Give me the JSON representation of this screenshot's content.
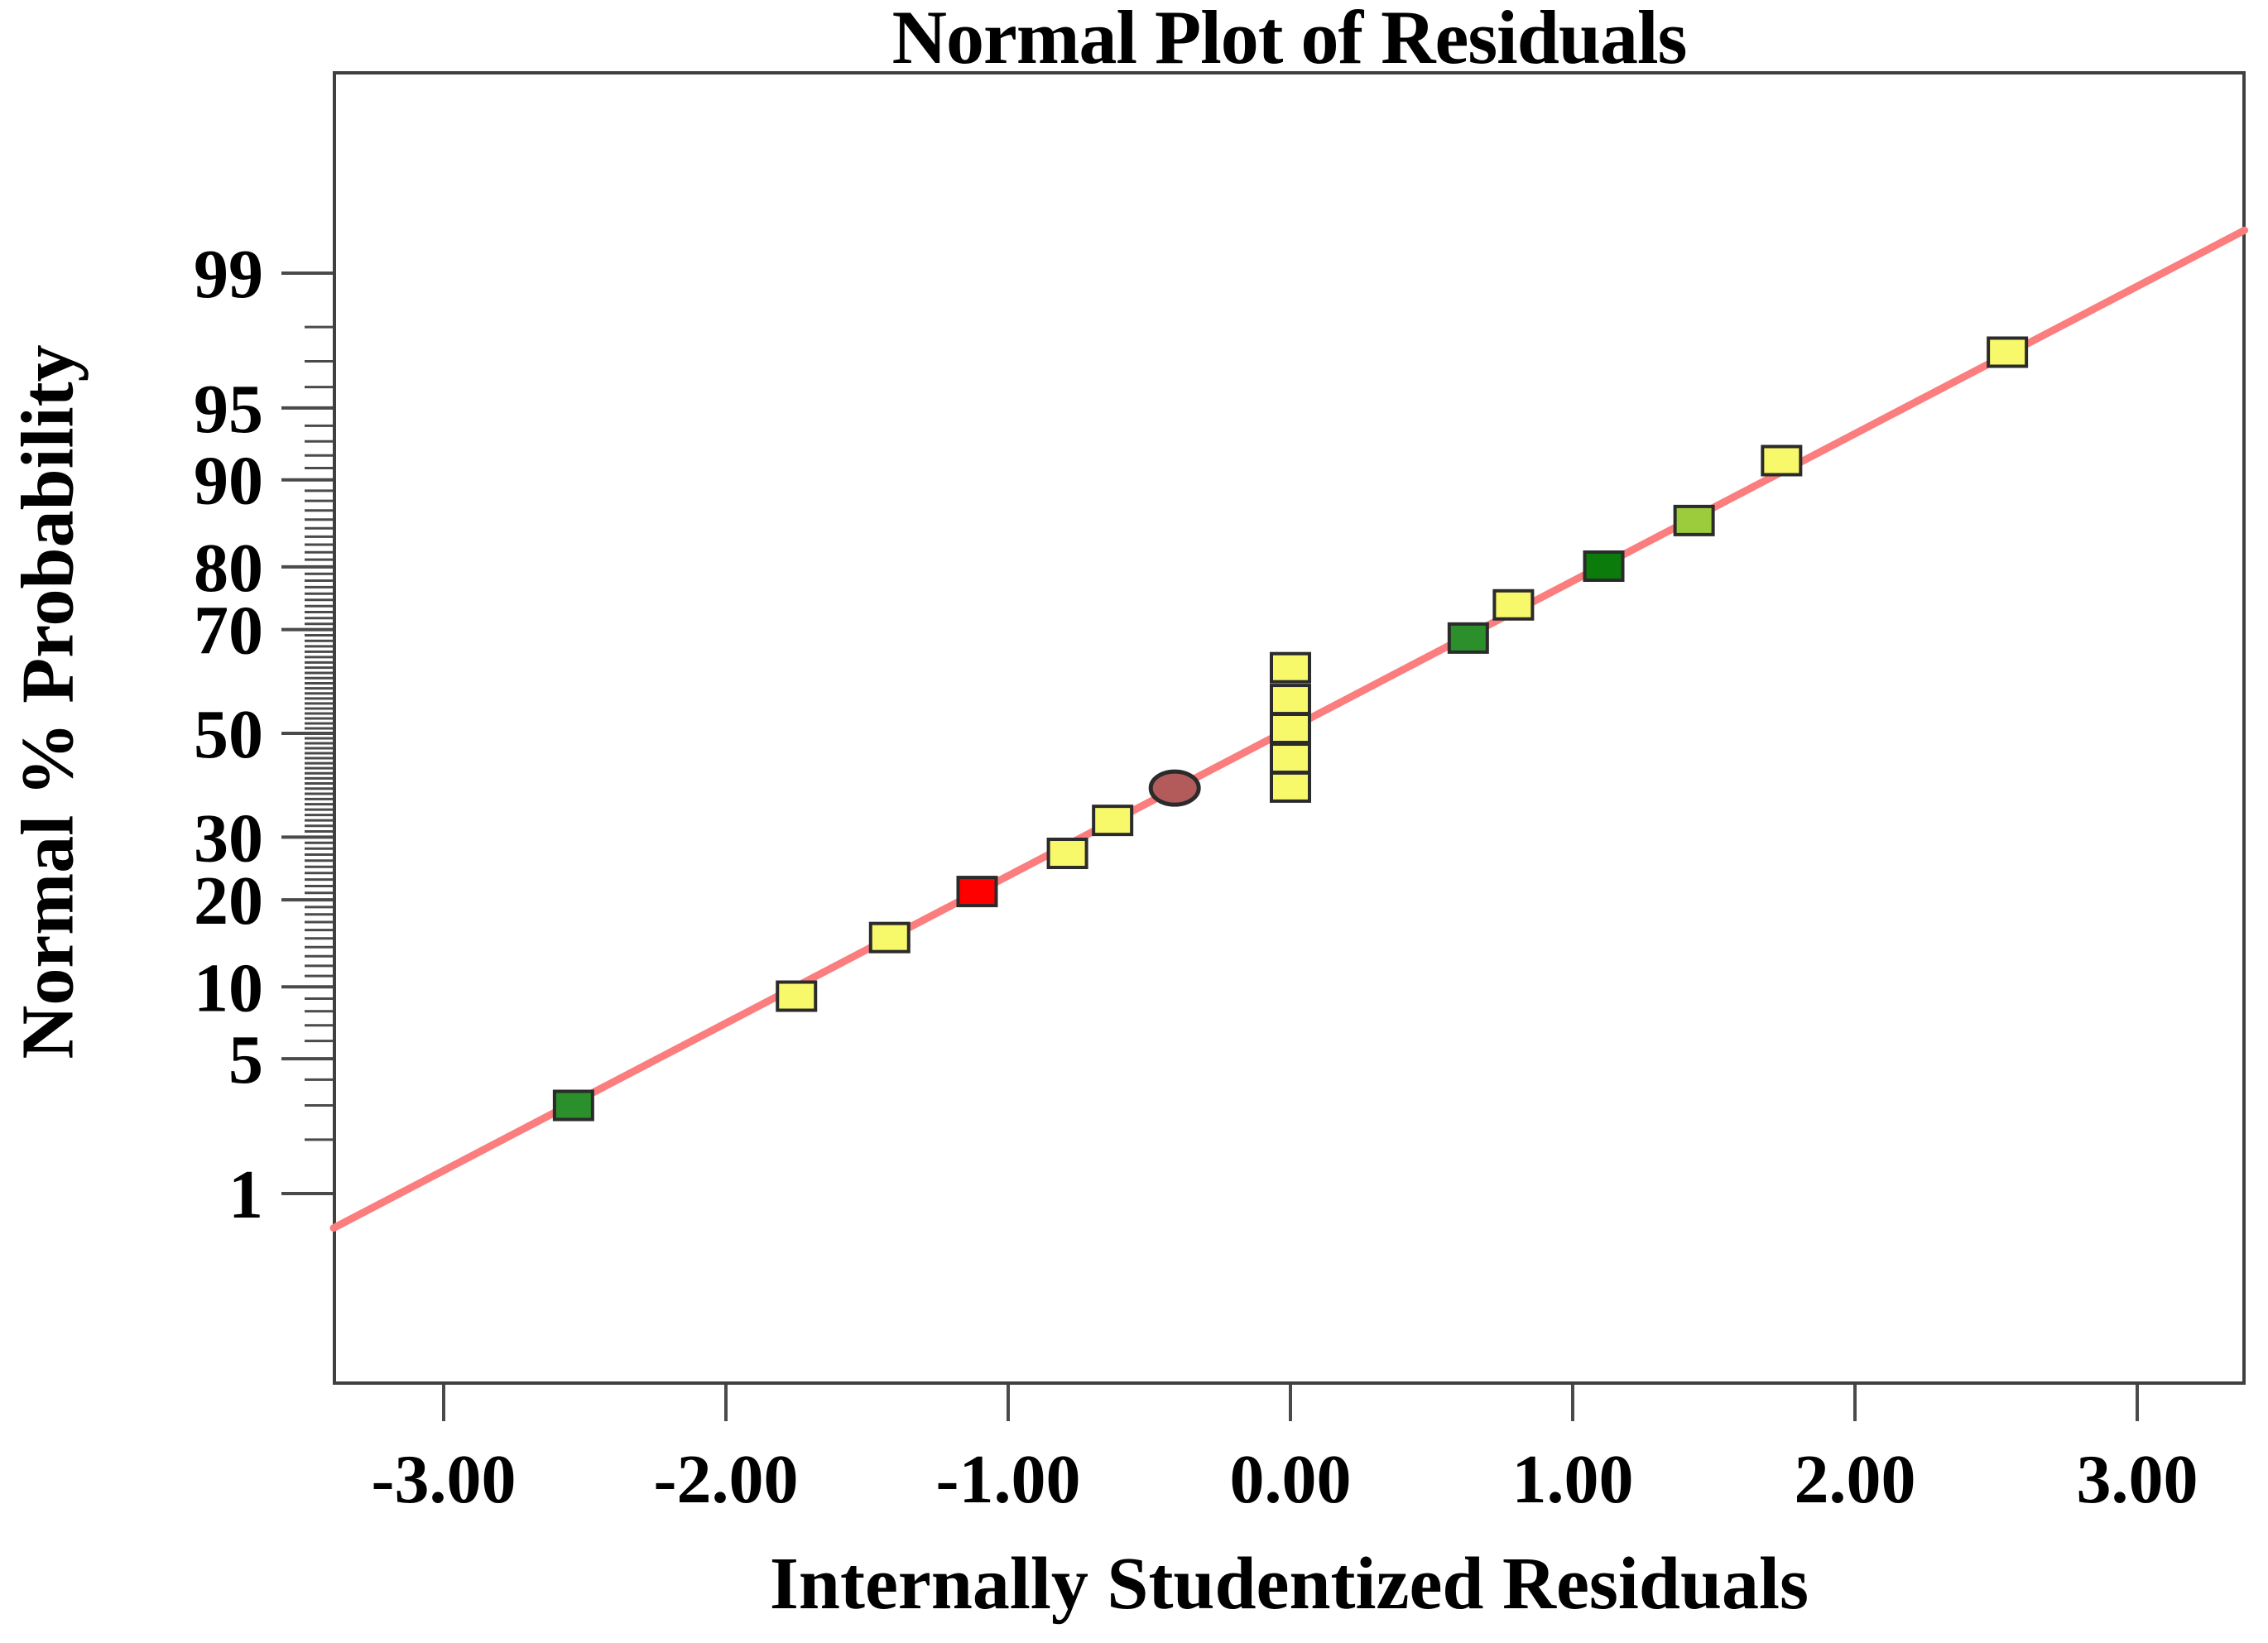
{
  "title": "Normal Plot of Residuals",
  "chart_data": {
    "type": "scatter",
    "subtype": "normal-probability-plot",
    "title": "Normal Plot of Residuals",
    "xlabel": "Internally Studentized Residuals",
    "ylabel": "Normal % Probability",
    "x_axis": {
      "range": [
        -3.39,
        3.38
      ],
      "ticks": [
        -3,
        -2,
        -1,
        0,
        1,
        2,
        3
      ],
      "tick_labels": [
        "-3.00",
        "-2.00",
        "-1.00",
        "0.00",
        "1.00",
        "2.00",
        "3.00"
      ]
    },
    "y_axis": {
      "scale": "probit",
      "unit": "%",
      "major_ticks": [
        99,
        95,
        90,
        80,
        70,
        50,
        30,
        20,
        10,
        5,
        1
      ],
      "major_tick_labels": [
        "99",
        "95",
        "90",
        "80",
        "70",
        "50",
        "30",
        "20",
        "10",
        "5",
        "1"
      ],
      "minor_ticks_percent_step": 1,
      "minor_tick_min": 2,
      "minor_tick_max": 98
    },
    "grid": false,
    "legend": false,
    "fit_line": {
      "x_start": -3.39,
      "p_start": 0.62,
      "x_end": 3.38,
      "p_end": 99.45,
      "color": "#FB7D7D"
    },
    "points": [
      {
        "x": -2.54,
        "p": 3.0,
        "color": "green",
        "shape": "square"
      },
      {
        "x": -1.75,
        "p": 9.2,
        "color": "yellow",
        "shape": "square"
      },
      {
        "x": -1.42,
        "p": 15.1,
        "color": "yellow",
        "shape": "square"
      },
      {
        "x": -1.11,
        "p": 21.2,
        "color": "red",
        "shape": "square"
      },
      {
        "x": -0.79,
        "p": 27.2,
        "color": "yellow",
        "shape": "square"
      },
      {
        "x": -0.63,
        "p": 33.0,
        "color": "yellow",
        "shape": "square"
      },
      {
        "x": -0.41,
        "p": 39.1,
        "color": "rose",
        "shape": "ellipse"
      },
      {
        "x": 0.0,
        "p": 39.3,
        "color": "yellow",
        "shape": "square"
      },
      {
        "x": 0.0,
        "p": 45.0,
        "color": "yellow",
        "shape": "square"
      },
      {
        "x": 0.0,
        "p": 51.0,
        "color": "yellow",
        "shape": "square"
      },
      {
        "x": 0.0,
        "p": 56.8,
        "color": "yellow",
        "shape": "square"
      },
      {
        "x": 0.0,
        "p": 63.0,
        "color": "yellow",
        "shape": "square"
      },
      {
        "x": 0.63,
        "p": 68.5,
        "color": "green",
        "shape": "square"
      },
      {
        "x": 0.79,
        "p": 74.2,
        "color": "yellow",
        "shape": "square"
      },
      {
        "x": 1.11,
        "p": 80.1,
        "color": "dark_green",
        "shape": "square"
      },
      {
        "x": 1.43,
        "p": 85.9,
        "color": "yellow_green",
        "shape": "square"
      },
      {
        "x": 1.74,
        "p": 91.6,
        "color": "yellow",
        "shape": "square"
      },
      {
        "x": 2.54,
        "p": 97.3,
        "color": "yellow",
        "shape": "square"
      }
    ],
    "palette": {
      "yellow": "#F8F86B",
      "red": "#FE0000",
      "green": "#2B8F2B",
      "dark_green": "#0B7B0B",
      "yellow_green": "#9CCB3C",
      "rose": "#B35B5B",
      "marker_border": "#2B2B2B",
      "axis": "#404040",
      "tick": "#4A4A4A",
      "text": "#000000"
    }
  }
}
